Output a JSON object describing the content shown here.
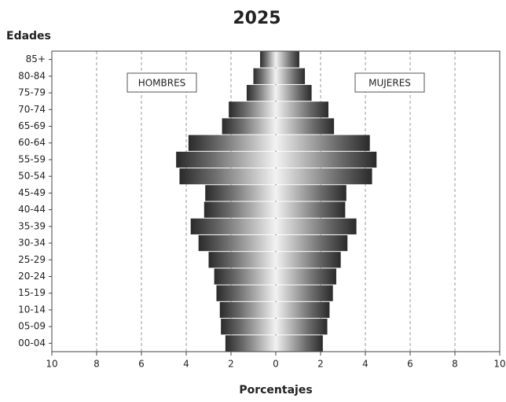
{
  "chart_data": {
    "type": "pyramid",
    "title": "2025",
    "y_label": "Edades",
    "x_label": "Porcentajes",
    "annotations": [
      "HOMBRES",
      "MUJERES"
    ],
    "categories": [
      "00-04",
      "05-09",
      "10-14",
      "15-19",
      "20-24",
      "25-29",
      "30-34",
      "35-39",
      "40-44",
      "45-49",
      "50-54",
      "55-59",
      "60-64",
      "65-69",
      "70-74",
      "75-79",
      "80-84",
      "85+"
    ],
    "series": [
      {
        "name": "HOMBRES",
        "values": [
          -2.25,
          -2.45,
          -2.5,
          -2.65,
          -2.75,
          -3.0,
          -3.45,
          -3.8,
          -3.2,
          -3.15,
          -4.3,
          -4.45,
          -3.9,
          -2.4,
          -2.1,
          -1.3,
          -1.0,
          -0.7
        ]
      },
      {
        "name": "MUJERES",
        "values": [
          2.1,
          2.3,
          2.4,
          2.55,
          2.7,
          2.9,
          3.2,
          3.6,
          3.1,
          3.15,
          4.3,
          4.5,
          4.2,
          2.6,
          2.35,
          1.6,
          1.3,
          1.05
        ]
      }
    ],
    "xlim": [
      -10,
      10
    ],
    "xticks": [
      {
        "value": -10,
        "label": "10"
      },
      {
        "value": -8,
        "label": "8"
      },
      {
        "value": -6,
        "label": "6"
      },
      {
        "value": -4,
        "label": "4"
      },
      {
        "value": -2,
        "label": "2"
      },
      0,
      2,
      4,
      6,
      8,
      10
    ],
    "grid": true
  }
}
